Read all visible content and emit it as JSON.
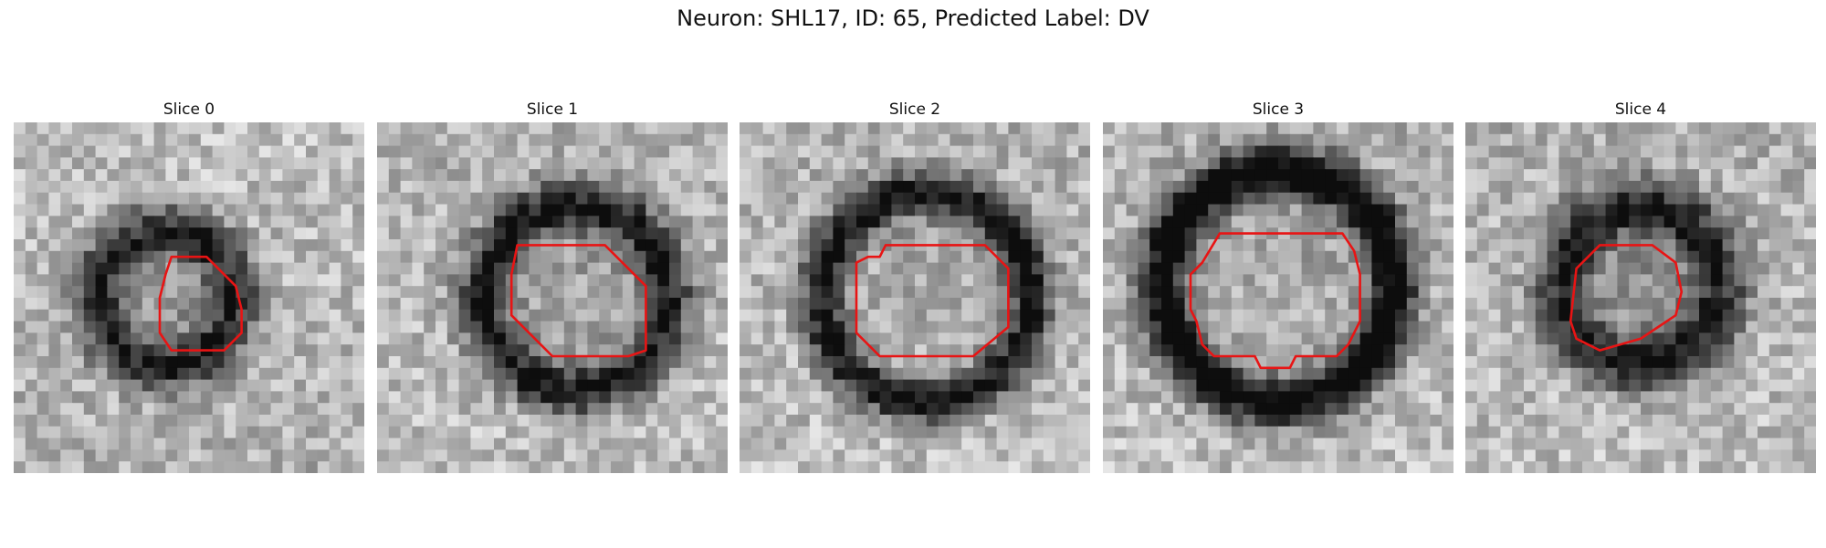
{
  "figure": {
    "title": "Neuron: SHL17, ID: 65, Predicted Label: DV",
    "contour_color": "#e81414",
    "colormap": "gray",
    "slices": [
      {
        "label": "Slice 0",
        "ring": "dark"
      },
      {
        "label": "Slice 1",
        "ring": "dark"
      },
      {
        "label": "Slice 2",
        "ring": "dark"
      },
      {
        "label": "Slice 3",
        "ring": "dark"
      },
      {
        "label": "Slice 4",
        "ring": "dark"
      }
    ]
  }
}
